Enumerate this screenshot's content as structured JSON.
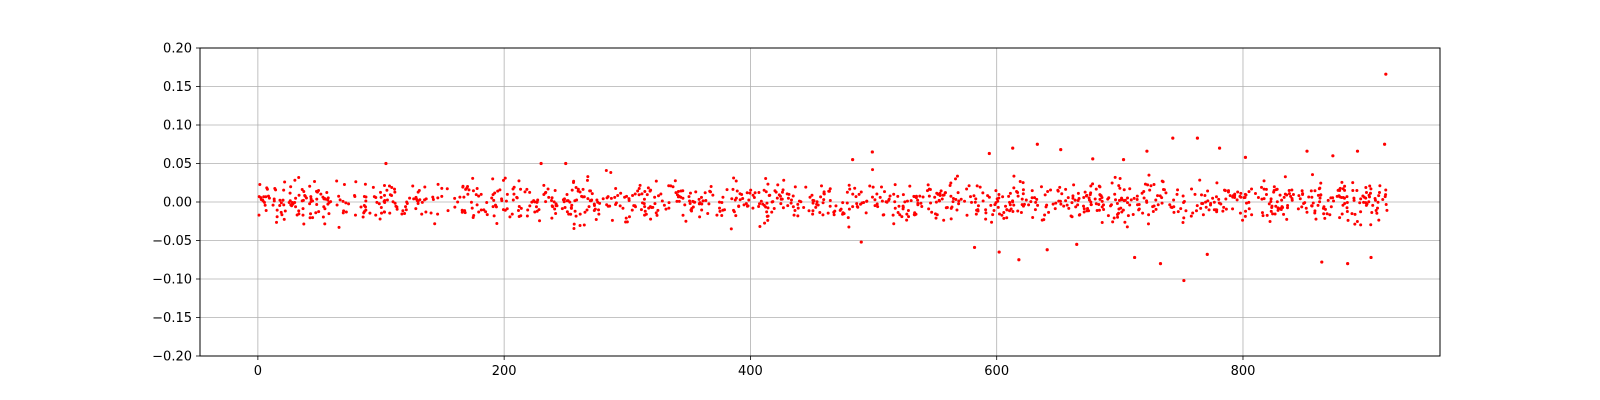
{
  "chart_data": {
    "type": "scatter",
    "title": "",
    "xlabel": "",
    "ylabel": "",
    "xlim": [
      -47,
      960
    ],
    "ylim": [
      -0.2,
      0.2
    ],
    "grid": true,
    "marker_color": "#ff0000",
    "x_ticks": [
      0,
      200,
      400,
      600,
      800
    ],
    "x_tick_labels": [
      "0",
      "200",
      "400",
      "600",
      "800"
    ],
    "y_ticks": [
      0.2,
      0.15,
      0.1,
      0.05,
      0.0,
      -0.05,
      -0.1,
      -0.15,
      -0.2
    ],
    "y_tick_labels": [
      "0.20",
      "0.15",
      "0.10",
      "0.05",
      "0.00",
      "−0.05",
      "−0.10",
      "−0.15",
      "−0.20"
    ],
    "series": [
      {
        "x_range": [
          0,
          917
        ],
        "band_points": 1200,
        "core_band": [
          -0.025,
          0.025
        ],
        "typical_extent": [
          -0.045,
          0.045
        ],
        "outliers": [
          {
            "x": 104,
            "y": 0.05
          },
          {
            "x": 230,
            "y": 0.05
          },
          {
            "x": 250,
            "y": 0.05
          },
          {
            "x": 483,
            "y": 0.055
          },
          {
            "x": 499,
            "y": 0.065
          },
          {
            "x": 490,
            "y": -0.052
          },
          {
            "x": 594,
            "y": 0.063
          },
          {
            "x": 582,
            "y": -0.059
          },
          {
            "x": 602,
            "y": -0.065
          },
          {
            "x": 613,
            "y": 0.07
          },
          {
            "x": 618,
            "y": -0.075
          },
          {
            "x": 633,
            "y": 0.075
          },
          {
            "x": 641,
            "y": -0.062
          },
          {
            "x": 652,
            "y": 0.068
          },
          {
            "x": 665,
            "y": -0.055
          },
          {
            "x": 678,
            "y": 0.056
          },
          {
            "x": 703,
            "y": 0.055
          },
          {
            "x": 712,
            "y": -0.072
          },
          {
            "x": 722,
            "y": 0.066
          },
          {
            "x": 733,
            "y": -0.08
          },
          {
            "x": 743,
            "y": 0.083
          },
          {
            "x": 752,
            "y": -0.102
          },
          {
            "x": 763,
            "y": 0.083
          },
          {
            "x": 771,
            "y": -0.068
          },
          {
            "x": 781,
            "y": 0.07
          },
          {
            "x": 802,
            "y": 0.058
          },
          {
            "x": 852,
            "y": 0.066
          },
          {
            "x": 864,
            "y": -0.078
          },
          {
            "x": 873,
            "y": 0.06
          },
          {
            "x": 885,
            "y": -0.08
          },
          {
            "x": 893,
            "y": 0.066
          },
          {
            "x": 904,
            "y": -0.072
          },
          {
            "x": 915,
            "y": 0.075
          },
          {
            "x": 916,
            "y": 0.166
          }
        ]
      }
    ]
  }
}
